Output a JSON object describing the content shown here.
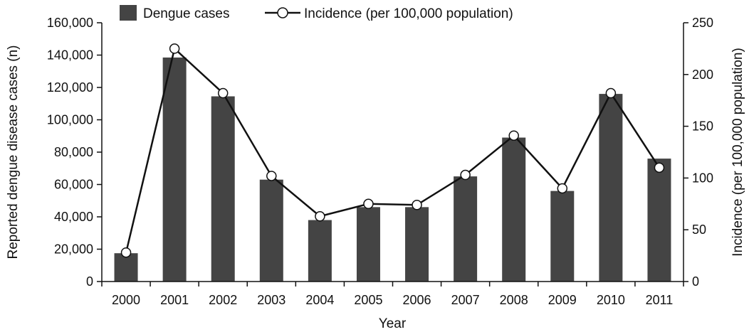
{
  "chart_data": {
    "type": "bar",
    "categories": [
      "2000",
      "2001",
      "2002",
      "2003",
      "2004",
      "2005",
      "2006",
      "2007",
      "2008",
      "2009",
      "2010",
      "2011"
    ],
    "series": [
      {
        "name": "Dengue cases",
        "type": "bar",
        "axis": "left",
        "values": [
          17500,
          138500,
          114500,
          63000,
          38000,
          46000,
          46000,
          65000,
          89000,
          56000,
          116000,
          76000
        ]
      },
      {
        "name": "Incidence (per 100,000 population)",
        "type": "line",
        "axis": "right",
        "values": [
          28,
          225,
          182,
          102,
          63,
          75,
          74,
          103,
          141,
          90,
          182,
          110
        ]
      }
    ],
    "xlabel": "Year",
    "ylabel": "Reported dengue disease cases (n)",
    "y2label": "Incidence (per 100,000 population)",
    "ylim": [
      0,
      160000
    ],
    "y2lim": [
      0,
      250
    ],
    "yticks": [
      "0",
      "20,000",
      "40,000",
      "60,000",
      "80,000",
      "100,000",
      "120,000",
      "140,000",
      "160,000"
    ],
    "y2ticks": [
      "0",
      "50",
      "100",
      "150",
      "200",
      "250"
    ],
    "grid": false,
    "legend_position": "top",
    "colors": {
      "bar": "#444444",
      "line": "#111111",
      "marker_fill": "#ffffff"
    }
  }
}
